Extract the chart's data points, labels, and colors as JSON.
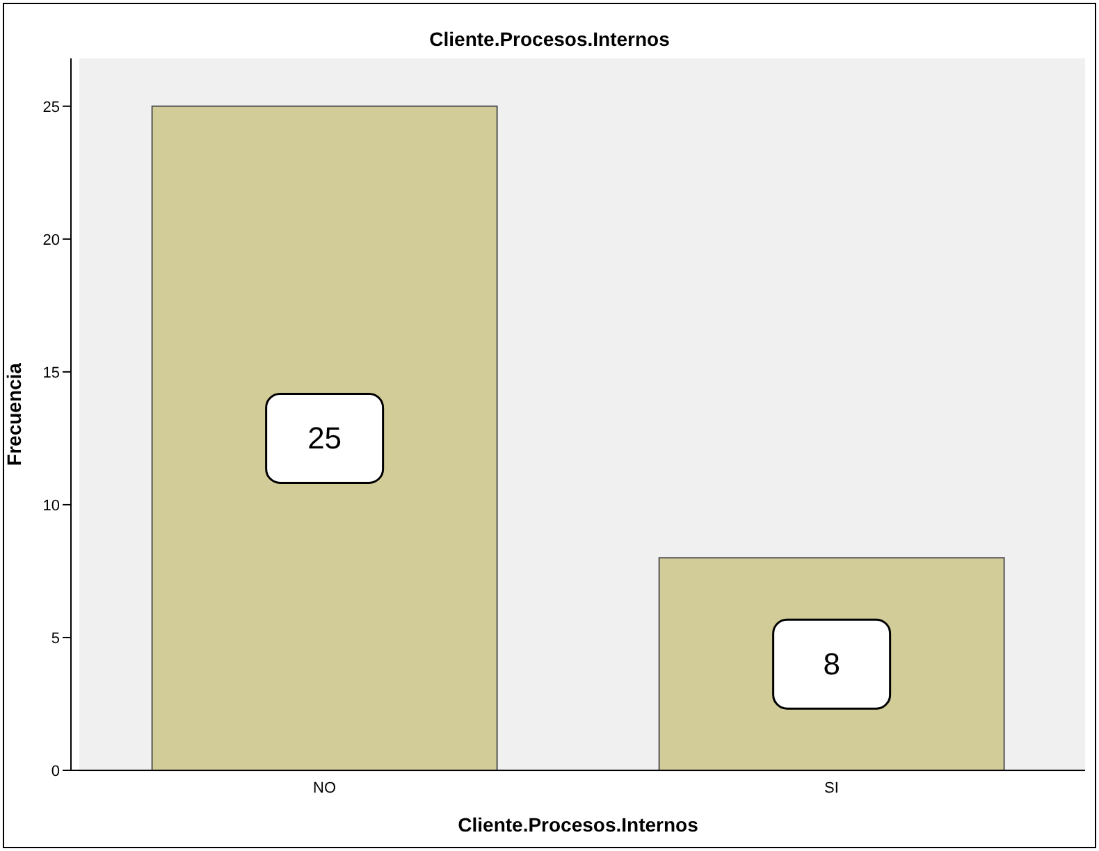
{
  "chart_data": {
    "type": "bar",
    "title": "Cliente.Procesos.Internos",
    "xlabel": "Cliente.Procesos.Internos",
    "ylabel": "Frecuencia",
    "categories": [
      "NO",
      "SI"
    ],
    "values": [
      25,
      8
    ],
    "color": "#d2cc98",
    "ylim": [
      0,
      26.8
    ],
    "yticks": [
      0,
      5,
      10,
      15,
      20,
      25
    ],
    "data_labels": true
  }
}
